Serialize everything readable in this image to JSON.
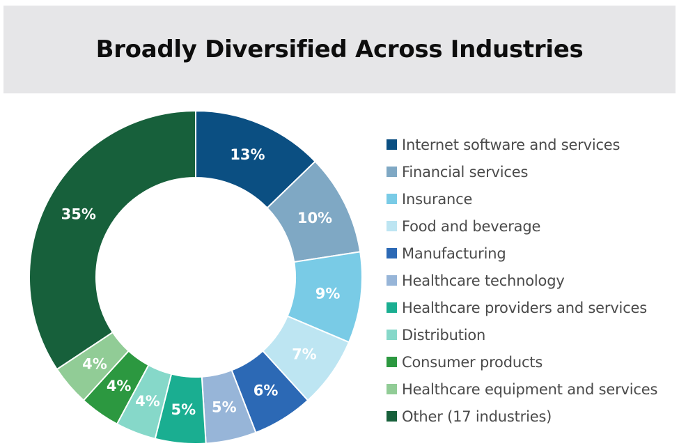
{
  "header": {
    "title": "Broadly Diversified Across Industries"
  },
  "chart_data": {
    "type": "pie",
    "title": "Broadly Diversified Across Industries",
    "legend_position": "right",
    "series": [
      {
        "name": "Internet software and services",
        "value": 13,
        "label": "13%",
        "color": "#0b4f82"
      },
      {
        "name": "Financial services",
        "value": 10,
        "label": "10%",
        "color": "#7fa8c4"
      },
      {
        "name": "Insurance",
        "value": 9,
        "label": "9%",
        "color": "#79cbe6"
      },
      {
        "name": "Food and beverage",
        "value": 7,
        "label": "7%",
        "color": "#bde5f2"
      },
      {
        "name": "Manufacturing",
        "value": 6,
        "label": "6%",
        "color": "#2c69b5"
      },
      {
        "name": "Healthcare technology",
        "value": 5,
        "label": "5%",
        "color": "#97b5d8"
      },
      {
        "name": "Healthcare providers and services",
        "value": 5,
        "label": "5%",
        "color": "#1aae91"
      },
      {
        "name": "Distribution",
        "value": 4,
        "label": "4%",
        "color": "#86d8c9"
      },
      {
        "name": "Consumer products",
        "value": 4,
        "label": "4%",
        "color": "#2c9840"
      },
      {
        "name": "Healthcare equipment and services",
        "value": 4,
        "label": "4%",
        "color": "#91cc96"
      },
      {
        "name": "Other (17 industries)",
        "value": 35,
        "label": "35%",
        "color": "#17603b"
      }
    ]
  }
}
